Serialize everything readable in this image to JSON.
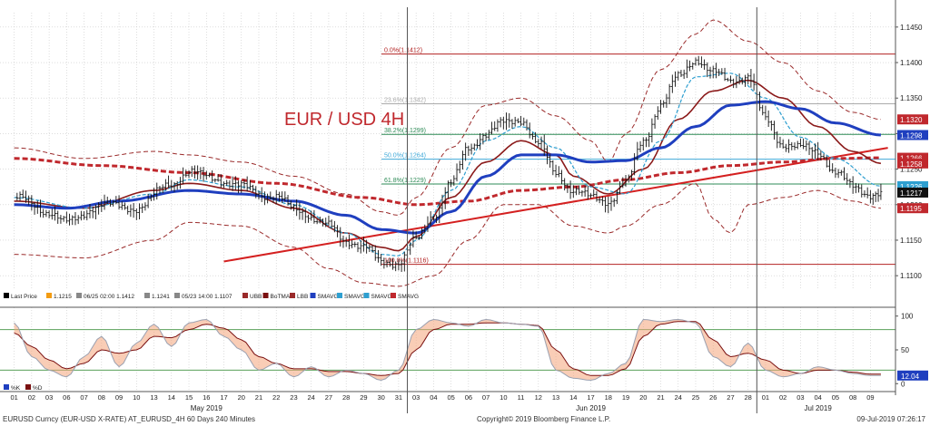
{
  "chart_data": {
    "type": "line",
    "title": "EUR / USD 4H",
    "price_axis": {
      "ylim": [
        1.109,
        1.146
      ],
      "ticks": [
        "1.1100",
        "1.1150",
        "1.1200",
        "1.1250",
        "1.1300",
        "1.1350",
        "1.1400",
        "1.1450"
      ]
    },
    "osc_axis": {
      "ylim": [
        -5,
        105
      ],
      "ticks": [
        "0",
        "50",
        "100"
      ],
      "upper_level": 80,
      "lower_level": 20
    },
    "x_axis": {
      "days": [
        "01",
        "02",
        "03",
        "06",
        "07",
        "08",
        "09",
        "10",
        "13",
        "14",
        "15",
        "16",
        "17",
        "20",
        "21",
        "22",
        "23",
        "24",
        "27",
        "28",
        "29",
        "30",
        "31",
        "03",
        "04",
        "05",
        "06",
        "07",
        "10",
        "11",
        "12",
        "13",
        "14",
        "17",
        "18",
        "19",
        "20",
        "21",
        "24",
        "25",
        "26",
        "27",
        "28",
        "01",
        "02",
        "03",
        "04",
        "05",
        "08",
        "09"
      ],
      "months": [
        {
          "label": "May 2019",
          "day_index": 11
        },
        {
          "label": "Jun 2019",
          "day_index": 33
        },
        {
          "label": "Jul 2019",
          "day_index": 46
        }
      ],
      "month_breaks": [
        22.5,
        42.5
      ]
    },
    "fibonacci": [
      {
        "label": "0.0%(1.1412)",
        "value": 1.1412,
        "color": "#b22222"
      },
      {
        "label": "23.6%(1.1342)",
        "value": 1.1342,
        "color": "#aaaaaa"
      },
      {
        "label": "38.2%(1.1299)",
        "value": 1.1299,
        "color": "#2e8b57"
      },
      {
        "label": "50.0%(1.1264)",
        "value": 1.1264,
        "color": "#3fa9d8"
      },
      {
        "label": "61.8%(1.1229)",
        "value": 1.1229,
        "color": "#2e8b57"
      },
      {
        "label": "100.0%(1.1116)",
        "value": 1.1116,
        "color": "#b22222"
      }
    ],
    "trendline": {
      "from": [
        12,
        1.112
      ],
      "to": [
        50,
        1.128
      ],
      "color": "#d42020"
    },
    "price_labels": [
      {
        "value": "1.1320",
        "bg": "#c0282d"
      },
      {
        "value": "1.1298",
        "bg": "#1f3fbf"
      },
      {
        "value": "1.1266",
        "bg": "#c0282d"
      },
      {
        "value": "1.1258",
        "bg": "#c0282d"
      },
      {
        "value": "1.1226",
        "bg": "#2e9fd0"
      },
      {
        "value": "1.1217",
        "bg": "#111111"
      },
      {
        "value": "1.1195",
        "bg": "#c0282d"
      }
    ],
    "osc_label": {
      "value": "12.04",
      "bg": "#1f3fbf"
    },
    "price_legend": [
      {
        "swatch": "#000000",
        "label": "Last Price"
      },
      {
        "swatch": "#f39c12",
        "label": "1.1215"
      },
      {
        "swatch": "#888888",
        "label": "06/25 02:00 1.1412"
      },
      {
        "swatch": "#888888",
        "label": "1.1241"
      },
      {
        "swatch": "#888888",
        "label": "05/23 14:00 1.1107"
      },
      {
        "swatch": "#9a2a2a",
        "label": "UBB"
      },
      {
        "swatch": "#7a1010",
        "label": "BoTMA"
      },
      {
        "swatch": "#9a2a2a",
        "label": "LBB"
      },
      {
        "swatch": "#1f3fbf",
        "label": "SMAVG"
      },
      {
        "swatch": "#2e9fd0",
        "label": "SMAVG"
      },
      {
        "swatch": "#2e9fd0",
        "label": "SMAVG"
      },
      {
        "swatch": "#c0282d",
        "label": "SMAVG"
      }
    ],
    "osc_legend": [
      {
        "swatch": "#1f3fbf",
        "label": "%K"
      },
      {
        "swatch": "#7a1010",
        "label": "%D"
      }
    ],
    "colors": {
      "price": "#111111",
      "ubb_lbb": "#9a2a2a",
      "botma": "#8b1a1a",
      "sma_blue": "#1f3fbf",
      "sma_cyan": "#2e9fd0",
      "sma_red": "#c0282d",
      "stoch_fill": "#f4a47a",
      "k_line": "#9aa0b0",
      "d_line": "#7a1010",
      "grid": "#c8c8c8"
    },
    "price_anchors": [
      [
        0,
        1.121
      ],
      [
        2,
        1.119
      ],
      [
        3,
        1.1175
      ],
      [
        5,
        1.12
      ],
      [
        7,
        1.1195
      ],
      [
        9,
        1.123
      ],
      [
        10,
        1.1245
      ],
      [
        11,
        1.124
      ],
      [
        13,
        1.1225
      ],
      [
        15,
        1.121
      ],
      [
        16,
        1.1195
      ],
      [
        18,
        1.117
      ],
      [
        19,
        1.115
      ],
      [
        20,
        1.114
      ],
      [
        21,
        1.112
      ],
      [
        22,
        1.1118
      ],
      [
        23,
        1.115
      ],
      [
        24,
        1.1185
      ],
      [
        25,
        1.123
      ],
      [
        26,
        1.128
      ],
      [
        27,
        1.13
      ],
      [
        28,
        1.1315
      ],
      [
        29,
        1.132
      ],
      [
        30,
        1.1285
      ],
      [
        31,
        1.1245
      ],
      [
        32,
        1.122
      ],
      [
        33,
        1.121
      ],
      [
        34,
        1.1205
      ],
      [
        35,
        1.123
      ],
      [
        36,
        1.129
      ],
      [
        37,
        1.134
      ],
      [
        38,
        1.138
      ],
      [
        39,
        1.1405
      ],
      [
        40,
        1.1385
      ],
      [
        41,
        1.1375
      ],
      [
        42,
        1.138
      ],
      [
        43,
        1.132
      ],
      [
        44,
        1.1285
      ],
      [
        45,
        1.128
      ],
      [
        46,
        1.1275
      ],
      [
        47,
        1.1245
      ],
      [
        48,
        1.1225
      ],
      [
        49,
        1.1215
      ],
      [
        49.6,
        1.1215
      ]
    ],
    "ubb_anchors": [
      [
        0,
        1.128
      ],
      [
        4,
        1.1265
      ],
      [
        8,
        1.1275
      ],
      [
        10,
        1.127
      ],
      [
        13,
        1.126
      ],
      [
        16,
        1.124
      ],
      [
        19,
        1.1215
      ],
      [
        21,
        1.119
      ],
      [
        22,
        1.1185
      ],
      [
        23,
        1.121
      ],
      [
        25,
        1.128
      ],
      [
        27,
        1.134
      ],
      [
        29,
        1.135
      ],
      [
        31,
        1.1325
      ],
      [
        33,
        1.129
      ],
      [
        34,
        1.126
      ],
      [
        35,
        1.13
      ],
      [
        37,
        1.139
      ],
      [
        39,
        1.144
      ],
      [
        40,
        1.146
      ],
      [
        42,
        1.143
      ],
      [
        44,
        1.14
      ],
      [
        46,
        1.136
      ],
      [
        48,
        1.133
      ],
      [
        49.6,
        1.132
      ]
    ],
    "lbb_anchors": [
      [
        0,
        1.113
      ],
      [
        4,
        1.1125
      ],
      [
        8,
        1.115
      ],
      [
        10,
        1.1175
      ],
      [
        13,
        1.117
      ],
      [
        16,
        1.114
      ],
      [
        18,
        1.111
      ],
      [
        20,
        1.109
      ],
      [
        22,
        1.1085
      ],
      [
        24,
        1.11
      ],
      [
        26,
        1.115
      ],
      [
        28,
        1.12
      ],
      [
        30,
        1.12
      ],
      [
        32,
        1.117
      ],
      [
        34,
        1.116
      ],
      [
        35,
        1.117
      ],
      [
        37,
        1.12
      ],
      [
        39,
        1.123
      ],
      [
        40,
        1.118
      ],
      [
        41,
        1.116
      ],
      [
        42,
        1.12
      ],
      [
        44,
        1.121
      ],
      [
        46,
        1.122
      ],
      [
        48,
        1.1205
      ],
      [
        49.6,
        1.1195
      ]
    ],
    "botma_anchors": [
      [
        0,
        1.1205
      ],
      [
        4,
        1.1195
      ],
      [
        8,
        1.122
      ],
      [
        10,
        1.123
      ],
      [
        13,
        1.122
      ],
      [
        16,
        1.1195
      ],
      [
        19,
        1.116
      ],
      [
        21,
        1.114
      ],
      [
        22,
        1.1135
      ],
      [
        23,
        1.1155
      ],
      [
        25,
        1.121
      ],
      [
        27,
        1.126
      ],
      [
        29,
        1.129
      ],
      [
        31,
        1.127
      ],
      [
        32,
        1.124
      ],
      [
        34,
        1.1215
      ],
      [
        36,
        1.125
      ],
      [
        38,
        1.132
      ],
      [
        40,
        1.136
      ],
      [
        42,
        1.1375
      ],
      [
        44,
        1.135
      ],
      [
        46,
        1.131
      ],
      [
        48,
        1.1275
      ],
      [
        49.6,
        1.1258
      ]
    ],
    "sma_blue_anchors": [
      [
        0,
        1.12
      ],
      [
        3,
        1.1195
      ],
      [
        6,
        1.1205
      ],
      [
        10,
        1.122
      ],
      [
        13,
        1.1215
      ],
      [
        16,
        1.1205
      ],
      [
        19,
        1.1185
      ],
      [
        21,
        1.1165
      ],
      [
        23,
        1.116
      ],
      [
        25,
        1.119
      ],
      [
        27,
        1.124
      ],
      [
        29,
        1.127
      ],
      [
        31,
        1.127
      ],
      [
        33,
        1.126
      ],
      [
        35,
        1.1262
      ],
      [
        37,
        1.128
      ],
      [
        39,
        1.131
      ],
      [
        41,
        1.134
      ],
      [
        43,
        1.1345
      ],
      [
        45,
        1.1335
      ],
      [
        47,
        1.1315
      ],
      [
        49.6,
        1.1298
      ]
    ],
    "sma_cyan_anchors": [
      [
        0,
        1.121
      ],
      [
        4,
        1.1195
      ],
      [
        8,
        1.1215
      ],
      [
        10,
        1.1235
      ],
      [
        13,
        1.1225
      ],
      [
        16,
        1.12
      ],
      [
        19,
        1.116
      ],
      [
        21,
        1.113
      ],
      [
        22,
        1.1128
      ],
      [
        23,
        1.115
      ],
      [
        25,
        1.122
      ],
      [
        27,
        1.129
      ],
      [
        29,
        1.131
      ],
      [
        31,
        1.128
      ],
      [
        33,
        1.1225
      ],
      [
        35,
        1.1215
      ],
      [
        37,
        1.129
      ],
      [
        39,
        1.138
      ],
      [
        41,
        1.1385
      ],
      [
        43,
        1.135
      ],
      [
        45,
        1.1295
      ],
      [
        47,
        1.1265
      ],
      [
        49.6,
        1.1226
      ]
    ],
    "sma_red_anchors": [
      [
        0,
        1.1265
      ],
      [
        5,
        1.1255
      ],
      [
        10,
        1.1245
      ],
      [
        15,
        1.123
      ],
      [
        20,
        1.121
      ],
      [
        23,
        1.12
      ],
      [
        26,
        1.1205
      ],
      [
        29,
        1.122
      ],
      [
        32,
        1.1225
      ],
      [
        35,
        1.1235
      ],
      [
        38,
        1.1245
      ],
      [
        41,
        1.1255
      ],
      [
        44,
        1.126
      ],
      [
        47,
        1.1265
      ],
      [
        49.6,
        1.1266
      ]
    ],
    "stoch_k_anchors": [
      [
        0,
        90
      ],
      [
        1,
        40
      ],
      [
        2,
        20
      ],
      [
        3,
        10
      ],
      [
        4,
        40
      ],
      [
        5,
        70
      ],
      [
        6,
        25
      ],
      [
        7,
        60
      ],
      [
        8,
        88
      ],
      [
        9,
        55
      ],
      [
        10,
        90
      ],
      [
        11,
        95
      ],
      [
        12,
        70
      ],
      [
        13,
        50
      ],
      [
        14,
        20
      ],
      [
        15,
        30
      ],
      [
        16,
        10
      ],
      [
        17,
        25
      ],
      [
        18,
        10
      ],
      [
        19,
        20
      ],
      [
        20,
        15
      ],
      [
        21,
        5
      ],
      [
        22,
        20
      ],
      [
        23,
        80
      ],
      [
        24,
        95
      ],
      [
        25,
        90
      ],
      [
        26,
        85
      ],
      [
        27,
        95
      ],
      [
        28,
        90
      ],
      [
        29,
        88
      ],
      [
        30,
        85
      ],
      [
        31,
        20
      ],
      [
        32,
        8
      ],
      [
        33,
        5
      ],
      [
        34,
        15
      ],
      [
        35,
        30
      ],
      [
        36,
        95
      ],
      [
        37,
        92
      ],
      [
        38,
        95
      ],
      [
        39,
        90
      ],
      [
        40,
        40
      ],
      [
        41,
        25
      ],
      [
        42,
        60
      ],
      [
        43,
        20
      ],
      [
        44,
        10
      ],
      [
        45,
        15
      ],
      [
        46,
        25
      ],
      [
        47,
        20
      ],
      [
        48,
        15
      ],
      [
        49,
        12
      ],
      [
        49.6,
        12
      ]
    ],
    "stoch_d_anchors": [
      [
        0,
        75
      ],
      [
        1,
        55
      ],
      [
        2,
        35
      ],
      [
        3,
        22
      ],
      [
        4,
        30
      ],
      [
        5,
        50
      ],
      [
        6,
        45
      ],
      [
        7,
        50
      ],
      [
        8,
        70
      ],
      [
        9,
        68
      ],
      [
        10,
        80
      ],
      [
        11,
        88
      ],
      [
        12,
        82
      ],
      [
        13,
        65
      ],
      [
        14,
        40
      ],
      [
        15,
        30
      ],
      [
        16,
        22
      ],
      [
        17,
        22
      ],
      [
        18,
        18
      ],
      [
        19,
        18
      ],
      [
        20,
        15
      ],
      [
        21,
        12
      ],
      [
        22,
        15
      ],
      [
        23,
        50
      ],
      [
        24,
        80
      ],
      [
        25,
        88
      ],
      [
        26,
        88
      ],
      [
        27,
        90
      ],
      [
        28,
        90
      ],
      [
        29,
        88
      ],
      [
        30,
        86
      ],
      [
        31,
        50
      ],
      [
        32,
        22
      ],
      [
        33,
        12
      ],
      [
        34,
        12
      ],
      [
        35,
        22
      ],
      [
        36,
        70
      ],
      [
        37,
        88
      ],
      [
        38,
        92
      ],
      [
        39,
        92
      ],
      [
        40,
        65
      ],
      [
        41,
        40
      ],
      [
        42,
        45
      ],
      [
        43,
        35
      ],
      [
        44,
        20
      ],
      [
        45,
        15
      ],
      [
        46,
        20
      ],
      [
        47,
        20
      ],
      [
        48,
        17
      ],
      [
        49,
        14
      ],
      [
        49.6,
        14
      ]
    ]
  },
  "footer": {
    "left": "EURUSD Curncy (EUR-USD X-RATE) AT_EURUSD_4H 60 Days 240 Minutes",
    "center": "Copyright© 2019 Bloomberg Finance L.P.",
    "right": "09-Jul-2019 07:26:17"
  }
}
